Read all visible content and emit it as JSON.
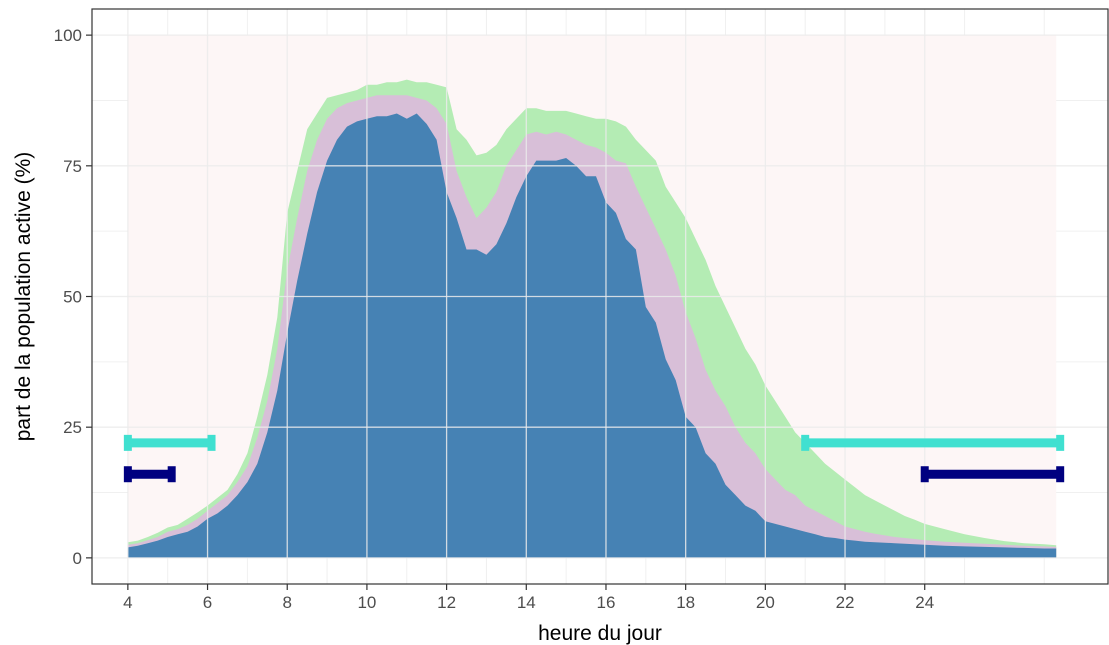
{
  "chart_data": {
    "type": "area",
    "xlabel": "heure du jour",
    "ylabel": "part de la population active (%)",
    "xlim": [
      3.1,
      28.6
    ],
    "ylim": [
      -5,
      105
    ],
    "x_ticks": [
      4,
      6,
      8,
      10,
      12,
      14,
      16,
      18,
      20,
      22,
      24
    ],
    "y_ticks": [
      0,
      25,
      50,
      75,
      100
    ],
    "grid": true,
    "legend": "none",
    "shaded_window": {
      "x": [
        4,
        27.3
      ],
      "y": [
        0,
        100
      ]
    },
    "x": [
      4,
      4.25,
      4.5,
      4.75,
      5,
      5.25,
      5.5,
      5.75,
      6,
      6.25,
      6.5,
      6.75,
      7,
      7.25,
      7.5,
      7.75,
      8,
      8.25,
      8.5,
      8.75,
      9,
      9.25,
      9.5,
      9.75,
      10,
      10.25,
      10.5,
      10.75,
      11,
      11.25,
      11.5,
      11.75,
      12,
      12.25,
      12.5,
      12.75,
      13,
      13.25,
      13.5,
      13.75,
      14,
      14.25,
      14.5,
      14.75,
      15,
      15.25,
      15.5,
      15.75,
      16,
      16.25,
      16.5,
      16.75,
      17,
      17.25,
      17.5,
      17.75,
      18,
      18.25,
      18.5,
      18.75,
      19,
      19.25,
      19.5,
      19.75,
      20,
      20.25,
      20.5,
      20.75,
      21,
      21.25,
      21.5,
      21.75,
      22,
      22.25,
      22.5,
      22.75,
      23,
      23.25,
      23.5,
      23.75,
      24,
      24.5,
      25,
      25.5,
      26,
      26.5,
      27,
      27.3
    ],
    "series": [
      {
        "color": "#4682b4",
        "values": [
          2,
          2.3,
          2.8,
          3.3,
          4,
          4.5,
          5,
          6,
          7.5,
          8.5,
          10,
          12,
          14.5,
          18,
          24,
          32,
          43,
          53,
          62,
          70,
          76,
          80,
          82.5,
          83.5,
          84,
          84.5,
          84.5,
          85,
          84,
          85,
          83,
          80,
          70,
          65,
          59,
          59,
          58,
          60,
          64,
          69,
          73,
          76,
          76,
          76,
          76.5,
          75,
          73,
          73,
          68,
          66,
          61,
          59,
          48,
          45,
          38,
          34,
          27,
          25,
          20,
          18,
          14,
          12,
          10,
          9,
          7,
          6.5,
          6,
          5.5,
          5,
          4.5,
          4,
          3.8,
          3.5,
          3.3,
          3.1,
          3,
          2.9,
          2.8,
          2.7,
          2.6,
          2.5,
          2.3,
          2.2,
          2.1,
          2,
          1.9,
          1.8,
          1.8
        ]
      },
      {
        "color": "#d8bfd8",
        "values": [
          2.5,
          2.8,
          3.4,
          4,
          5,
          5.5,
          6.3,
          7.5,
          9,
          10.5,
          12,
          14.5,
          17.5,
          23,
          30,
          40,
          55,
          65,
          74,
          80,
          84,
          86,
          87,
          87.5,
          88,
          88.5,
          88.5,
          88.5,
          88.5,
          88,
          87.5,
          86,
          83,
          74,
          69,
          65,
          67,
          70,
          75,
          78,
          81,
          81.5,
          81,
          81.5,
          81,
          80,
          79,
          78.5,
          77.5,
          76,
          75.5,
          71,
          67,
          63,
          59,
          54,
          47,
          42,
          36,
          32,
          29,
          25,
          22,
          20,
          17,
          15,
          13,
          12,
          10,
          9,
          8,
          7,
          6,
          5.5,
          5,
          4.6,
          4.3,
          4,
          3.8,
          3.6,
          3.4,
          3.1,
          2.9,
          2.7,
          2.5,
          2.3,
          2.2,
          2.1
        ]
      },
      {
        "color": "#b4ecb4",
        "values": [
          3,
          3.3,
          4,
          4.8,
          5.8,
          6.3,
          7.5,
          8.7,
          10,
          11.5,
          13,
          16,
          20,
          27,
          35,
          46,
          66,
          74,
          82,
          85,
          88,
          88.5,
          89,
          89.5,
          90.5,
          90.5,
          91,
          91,
          91.5,
          91,
          91,
          90.5,
          90,
          82,
          80,
          77,
          77.5,
          79,
          82,
          84,
          86,
          86,
          85.5,
          85.5,
          85.5,
          85,
          84.5,
          84,
          84,
          83.5,
          82.5,
          80,
          78,
          76,
          71,
          68,
          65,
          61,
          57,
          52,
          48,
          44,
          40,
          37,
          33,
          30,
          27,
          24,
          22,
          20,
          18,
          16.5,
          15,
          13.5,
          12,
          11,
          10,
          9,
          8,
          7.3,
          6.5,
          5.5,
          4.5,
          3.8,
          3.2,
          2.8,
          2.6,
          2.4
        ]
      }
    ],
    "range_bars": [
      {
        "color": "#40e0d0",
        "y": 22,
        "x_start": 4,
        "x_end": 6.1
      },
      {
        "color": "#40e0d0",
        "y": 22,
        "x_start": 21,
        "x_end": 27.4
      },
      {
        "color": "#000080",
        "y": 16,
        "x_start": 4,
        "x_end": 5.1
      },
      {
        "color": "#000080",
        "y": 16,
        "x_start": 24,
        "x_end": 27.4
      }
    ]
  }
}
